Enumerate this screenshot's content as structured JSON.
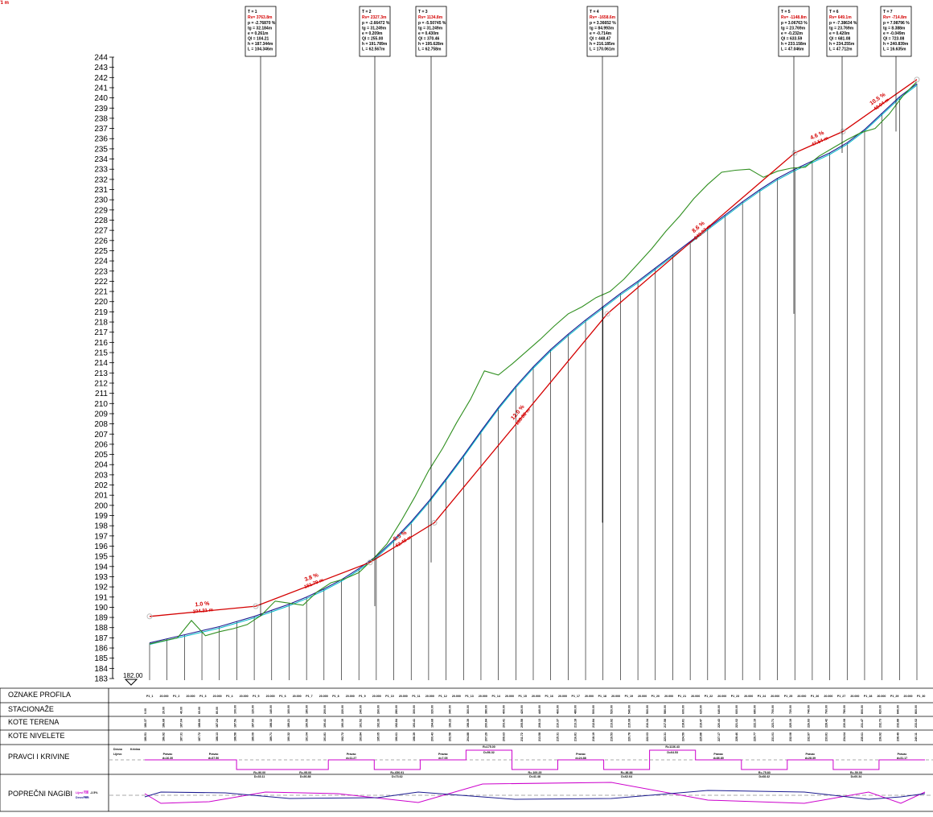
{
  "drawing": {
    "title": "",
    "datum_label": "182.00",
    "y_axis": {
      "min": 183,
      "max": 244,
      "step": 1
    },
    "band_labels": {
      "profiles": "OZNAKE PROFILA",
      "stations": "STACIONAŽE",
      "terrain": "KOTE TERENA",
      "grade": "KOTE NIVELETE",
      "alignment": "PRAVCI I KRIVINE",
      "crossfall": "POPREČNI NAGIBI"
    },
    "vertical_curves": [
      {
        "label": "T = 1",
        "rv": "Rv= 3763.8m",
        "lines": [
          "p = -2.76870 %",
          "tg = 32.184m",
          "e = 0.261m",
          "Ql = 104.21",
          "h = 187.344m",
          "L = 104.346m"
        ]
      },
      {
        "label": "T = 2",
        "rv": "Rv= 2327.3m",
        "lines": [
          "p = -2.66472 %",
          "tg = 31.249m",
          "e = 0.209m",
          "Ql = 255.00",
          "h = 191.789m",
          "L = 62.567m"
        ]
      },
      {
        "label": "T = 3",
        "rv": "Rv= 1134.8m",
        "lines": [
          "p = -5.50745 %",
          "tg = 31.249m",
          "e = 0.430m",
          "Ql = 370.46",
          "h = 195.628m",
          "L = 62.758m"
        ]
      },
      {
        "label": "T = 4",
        "rv": "Rv= -1658.6m",
        "lines": [
          "p = 3.36652 %",
          "tg = 84.993m",
          "e = -0.714m",
          "Ql = 448.47",
          "h = 216.185m",
          "L = 170.061m"
        ]
      },
      {
        "label": "T = 5",
        "rv": "Rv= -1148.8m",
        "lines": [
          "p = 3.06763 %",
          "tg = 23.769m",
          "e = -0.232m",
          "Ql = 633.59",
          "h = 233.158m",
          "L = 47.046m"
        ]
      },
      {
        "label": "T = 6",
        "rv": "Rv= 649.1m",
        "lines": [
          "p = -7.38634 %",
          "tg = 23.769m",
          "e = 0.420m",
          "Ql = 681.08",
          "h = 234.255m",
          "L = 47.712m"
        ]
      },
      {
        "label": "T = 7",
        "rv": "Rv= -714.8m",
        "lines": [
          "p = 7.98796 %",
          "tg = 8.388m",
          "e = -0.049m",
          "Ql = 723.08",
          "h = 240.839m",
          "L = 16.635m"
        ]
      }
    ],
    "grade_labels": [
      {
        "pct": "1.0 %",
        "len": "104.21 m"
      },
      {
        "pct": "3.8 %",
        "len": "151.79 m"
      },
      {
        "pct": "6.5 %",
        "len": "62.49 m"
      },
      {
        "pct": "12.0 %",
        "len": "188.88 m"
      },
      {
        "pct": "8.6 %",
        "len": "243.07 m"
      },
      {
        "pct": "4.6 %",
        "len": "47.54 m"
      },
      {
        "pct": "10.5 %",
        "len": "42.04 m"
      },
      {
        "pct": "4.5 %",
        "len": "18.71 m"
      }
    ],
    "profile": {
      "stations": [
        0,
        20,
        40,
        60,
        80,
        100,
        120,
        140,
        160,
        180,
        200,
        220,
        240,
        260,
        280,
        300,
        320,
        340,
        360,
        380,
        400,
        420,
        440,
        460,
        480,
        500,
        520,
        540,
        560,
        580,
        600,
        620,
        640,
        660,
        680,
        700,
        720,
        740,
        760,
        780,
        800,
        820,
        840,
        860,
        880,
        900,
        920,
        940,
        960,
        980,
        1000,
        1020,
        1040,
        1060,
        1080,
        1100,
        1120,
        1140,
        1160
      ],
      "terrain": [
        186.4,
        186.7,
        187.0,
        188.7,
        187.2,
        187.6,
        187.9,
        188.3,
        189.2,
        190.6,
        190.4,
        190.2,
        191.5,
        192.4,
        192.8,
        193.4,
        194.7,
        196.2,
        198.4,
        200.8,
        203.4,
        205.6,
        208.1,
        210.4,
        213.2,
        212.8,
        213.9,
        215.1,
        216.3,
        217.6,
        218.8,
        219.5,
        220.4,
        221.0,
        222.2,
        223.7,
        225.2,
        226.9,
        228.4,
        230.1,
        231.5,
        232.7,
        232.9,
        233.0,
        232.2,
        232.8,
        233.1,
        233.2,
        234.3,
        235.1,
        235.9,
        236.6,
        237.0,
        238.4,
        240.2,
        241.6
      ],
      "grade": [
        186.5,
        186.9,
        187.3,
        187.7,
        188.1,
        188.6,
        189.1,
        189.7,
        190.3,
        191.0,
        191.8,
        192.7,
        193.8,
        195.0,
        196.6,
        198.4,
        200.4,
        202.6,
        204.9,
        207.3,
        209.6,
        211.7,
        213.6,
        215.3,
        216.8,
        218.2,
        219.5,
        220.8,
        222.0,
        223.3,
        224.6,
        225.9,
        227.2,
        228.5,
        229.8,
        231.0,
        232.1,
        233.0,
        233.8,
        234.6,
        235.6,
        236.9,
        238.5,
        240.1,
        241.4
      ],
      "tangent": [
        189.1,
        190.1,
        194.4,
        198.3,
        218.8,
        234.6,
        236.7,
        241.8
      ]
    },
    "row_values": {
      "profile_codes": [
        "P1_1",
        "20.000",
        "P1_2",
        "20.000",
        "P1_3",
        "20.000",
        "P1_4",
        "20.000",
        "P1_5",
        "20.000",
        "P1_6",
        "20.000",
        "P1_7",
        "20.000",
        "P1_8",
        "20.000",
        "P1_9",
        "20.000",
        "P1_10",
        "20.000",
        "P1_11",
        "20.000",
        "P1_12",
        "20.000",
        "P1_13",
        "20.000",
        "P1_14",
        "20.000",
        "P1_15",
        "20.000",
        "P1_16",
        "20.000",
        "P1_17",
        "20.000",
        "P1_18",
        "20.000",
        "P1_19",
        "20.000",
        "P1_20",
        "20.000",
        "P1_21",
        "20.000",
        "P1_22",
        "20.000",
        "P1_23",
        "20.000",
        "P1_24",
        "20.000",
        "P1_25",
        "20.000",
        "P1_26",
        "20.000",
        "P1_27",
        "20.000",
        "P1_28",
        "20.000",
        "P1_29",
        "20.000",
        "P1_30"
      ],
      "stations": [
        "0.00",
        "20.00",
        "40.00",
        "60.00",
        "80.00",
        "100.00",
        "120.00",
        "140.00",
        "160.00",
        "180.00",
        "200.00",
        "220.00",
        "240.00",
        "260.00",
        "280.00",
        "300.00",
        "320.00",
        "340.00",
        "360.00",
        "380.00",
        "400.00",
        "420.00",
        "440.00",
        "460.00",
        "480.00",
        "500.00",
        "520.00",
        "540.00",
        "560.00",
        "580.00",
        "600.00",
        "620.00",
        "640.00",
        "660.00",
        "680.00",
        "700.00",
        "720.00",
        "740.00",
        "760.00",
        "780.00",
        "800.00",
        "820.00",
        "840.00",
        "860.00"
      ],
      "terrain_values": [
        "186.37",
        "186.68",
        "187.04",
        "188.66",
        "187.24",
        "187.56",
        "187.93",
        "188.32",
        "189.21",
        "190.59",
        "190.41",
        "190.19",
        "191.52",
        "192.39",
        "192.84",
        "193.41",
        "194.68",
        "196.22",
        "198.39",
        "200.84",
        "203.41",
        "205.58",
        "208.13",
        "210.37",
        "213.18",
        "212.84",
        "213.92",
        "215.08",
        "216.34",
        "217.58",
        "218.81",
        "219.47",
        "220.43",
        "221.02",
        "222.19",
        "223.71",
        "225.19",
        "226.93",
        "228.42",
        "230.08",
        "231.47",
        "232.73",
        "232.88",
        "233.02"
      ],
      "grade_values": [
        "186.51",
        "186.92",
        "187.31",
        "187.72",
        "188.13",
        "188.58",
        "189.09",
        "189.71",
        "190.32",
        "191.04",
        "191.81",
        "192.72",
        "193.84",
        "195.05",
        "196.61",
        "198.39",
        "200.43",
        "202.58",
        "204.88",
        "207.29",
        "209.63",
        "211.72",
        "213.58",
        "215.31",
        "216.81",
        "218.19",
        "219.53",
        "220.78",
        "222.03",
        "223.31",
        "224.59",
        "225.88",
        "227.17",
        "228.46",
        "229.77",
        "231.01",
        "232.08",
        "232.97",
        "233.81",
        "234.64",
        "235.61",
        "236.92",
        "238.49",
        "240.11"
      ]
    },
    "alignment": [
      {
        "label": "Pravac",
        "sub": "d=16.30"
      },
      {
        "label": "Pravac",
        "sub": "d=37.50"
      },
      {
        "label": "R=-90.00",
        "sub": "D=33.11"
      },
      {
        "label": "R=-95.00",
        "sub": "D=36.88"
      },
      {
        "label": "Pravac",
        "sub": "d=11.27"
      },
      {
        "label": "R=-650.91",
        "sub": "D=73.62"
      },
      {
        "label": "Pravac",
        "sub": "d=7.05"
      },
      {
        "label": "R=175.00",
        "sub": "D=56.32"
      },
      {
        "label": "R=-100.25",
        "sub": "D=41.48"
      },
      {
        "label": "Pravac",
        "sub": "d=24.88"
      },
      {
        "label": "R=-86.88",
        "sub": "D=62.64"
      },
      {
        "label": "R=1136.43",
        "sub": "D=64.53"
      },
      {
        "label": "Pravac",
        "sub": "d=86.80"
      },
      {
        "label": "R=-75.83",
        "sub": "D=68.42"
      },
      {
        "label": "Pravac",
        "sub": "d=28.39"
      },
      {
        "label": "R=-50.00",
        "sub": "D=60.34"
      },
      {
        "label": "Pravac",
        "sub": "d=31.17"
      }
    ],
    "legend": {
      "alignment_a": "Desno",
      "alignment_b": "Lijevo",
      "alignment_c": "Krivina",
      "crossfall_a": "Lijevi rub",
      "crossfall_b": "Desni rub",
      "crossfall_val": "-2.5%"
    },
    "colors": {
      "terrain": "#2f8f1f",
      "grade": "#d40000",
      "edge": "#1a1a8f",
      "cyan": "#00b8c8",
      "curve": "#cc00cc",
      "axis": "#000000"
    }
  }
}
